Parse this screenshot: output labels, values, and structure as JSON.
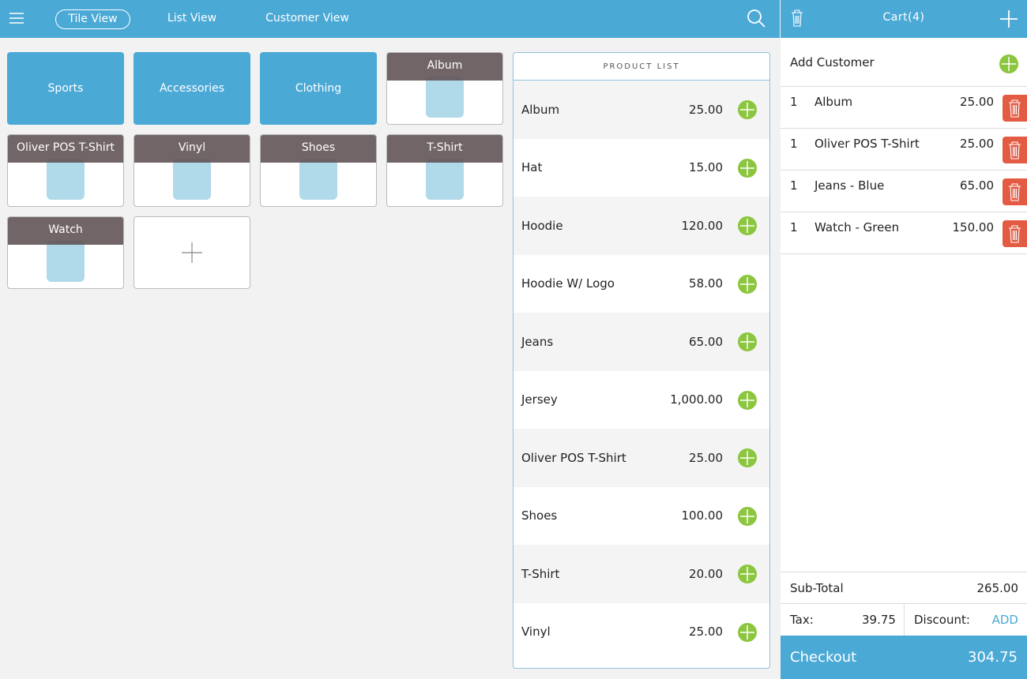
{
  "nav": {
    "tabs": [
      "Tile View",
      "List View",
      "Customer View"
    ]
  },
  "tiles": {
    "categories": [
      "Sports",
      "Accessories",
      "Clothing"
    ],
    "products": [
      "Album",
      "Oliver POS T-Shirt",
      "Vinyl",
      "Shoes",
      "T-Shirt",
      "Watch"
    ]
  },
  "product_list": {
    "title": "PRODUCT LIST",
    "items": [
      {
        "name": "Album",
        "price": "25.00"
      },
      {
        "name": "Hat",
        "price": "15.00"
      },
      {
        "name": "Hoodie",
        "price": "120.00"
      },
      {
        "name": "Hoodie W/ Logo",
        "price": "58.00"
      },
      {
        "name": "Jeans",
        "price": "65.00"
      },
      {
        "name": "Jersey",
        "price": "1,000.00"
      },
      {
        "name": "Oliver POS T-Shirt",
        "price": "25.00"
      },
      {
        "name": "Shoes",
        "price": "100.00"
      },
      {
        "name": "T-Shirt",
        "price": "20.00"
      },
      {
        "name": "Vinyl",
        "price": "25.00"
      }
    ]
  },
  "cart": {
    "title": "Cart(4)",
    "add_customer": "Add Customer",
    "items": [
      {
        "qty": 1,
        "name": "Album",
        "price": "25.00"
      },
      {
        "qty": 1,
        "name": "Oliver POS T-Shirt",
        "price": "25.00"
      },
      {
        "qty": 1,
        "name": "Jeans - Blue",
        "price": "65.00"
      },
      {
        "qty": 1,
        "name": "Watch - Green",
        "price": "150.00"
      }
    ],
    "subtotal_label": "Sub-Total",
    "subtotal": "265.00",
    "tax_label": "Tax:",
    "tax": "39.75",
    "discount_label": "Discount:",
    "discount_action": "ADD",
    "checkout_label": "Checkout",
    "total": "304.75"
  }
}
